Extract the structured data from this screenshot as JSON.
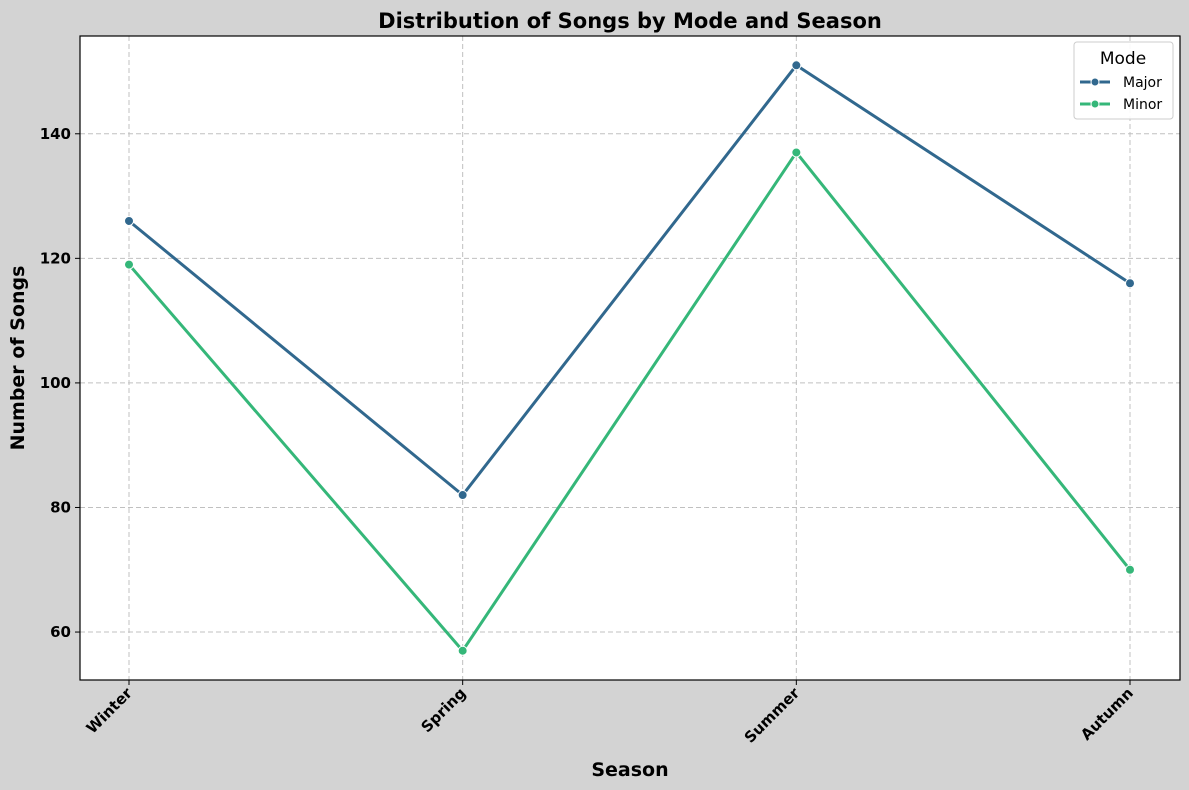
{
  "chart_data": {
    "type": "line",
    "title": "Distribution of Songs by Mode and Season",
    "xlabel": "Season",
    "ylabel": "Number of Songs",
    "categories": [
      "Winter",
      "Spring",
      "Summer",
      "Autumn"
    ],
    "series": [
      {
        "name": "Major",
        "values": [
          126,
          82,
          151,
          116
        ],
        "color": "#31688e"
      },
      {
        "name": "Minor",
        "values": [
          119,
          57,
          137,
          70
        ],
        "color": "#35b779"
      }
    ],
    "ylim": [
      52.3,
      155.7
    ],
    "yticks": [
      60,
      80,
      100,
      120,
      140
    ],
    "grid": true,
    "legend": {
      "title": "Mode",
      "placement": "top-right"
    }
  }
}
